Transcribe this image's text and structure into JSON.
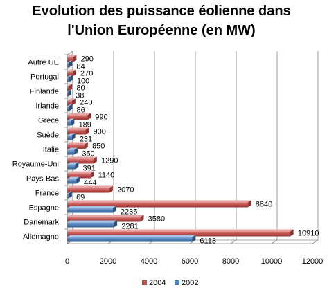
{
  "chart_data": {
    "type": "bar",
    "orientation": "horizontal",
    "title": "Evolution des puissance éolienne dans l'Union Européenne (en MW)",
    "title_lines": [
      "Evolution des puissance éolienne dans",
      "l'Union Européenne (en MW)"
    ],
    "categories": [
      "Allemagne",
      "Danemark",
      "Espagne",
      "France",
      "Pays-Bas",
      "Royaume-Uni",
      "Italie",
      "Suède",
      "Grèce",
      "Irlande",
      "Finlande",
      "Portugal",
      "Autre UE"
    ],
    "series": [
      {
        "name": "2004",
        "color": "#c0504d",
        "values": [
          10910,
          3580,
          8840,
          2070,
          1140,
          1290,
          850,
          900,
          990,
          240,
          80,
          270,
          290
        ]
      },
      {
        "name": "2002",
        "color": "#4f81bd",
        "values": [
          6113,
          2281,
          2235,
          69,
          444,
          391,
          350,
          231,
          189,
          86,
          38,
          100,
          84
        ]
      }
    ],
    "xlim": [
      0,
      12000
    ],
    "x_ticks": [
      0,
      2000,
      4000,
      6000,
      8000,
      10000,
      12000
    ],
    "x_tick_labels": [
      "0",
      "2000",
      "4000",
      "6000",
      "8000",
      "10000",
      "12000"
    ],
    "xlabel": "",
    "ylabel": "",
    "grid": true,
    "style": "3d",
    "legend_position": "bottom"
  }
}
